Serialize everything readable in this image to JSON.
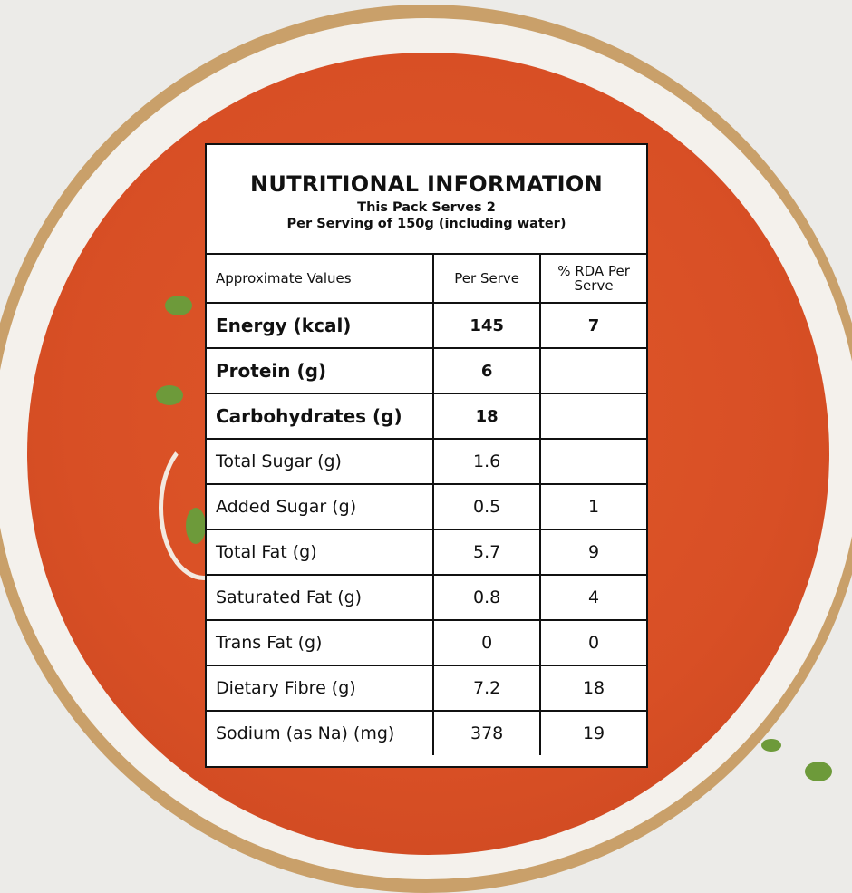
{
  "label": {
    "title": "NUTRITIONAL INFORMATION",
    "serves": "This Pack Serves 2",
    "serving": "Per Serving of 150g (including water)",
    "columns": [
      "Approximate Values",
      "Per Serve",
      "% RDA Per Serve"
    ],
    "rows": [
      {
        "name": "Energy (kcal)",
        "per_serve": "145",
        "rda": "7",
        "bold": true
      },
      {
        "name": "Protein (g)",
        "per_serve": "6",
        "rda": "",
        "bold": true
      },
      {
        "name": "Carbohydrates (g)",
        "per_serve": "18",
        "rda": "",
        "bold": true
      },
      {
        "name": "Total Sugar (g)",
        "per_serve": "1.6",
        "rda": ""
      },
      {
        "name": "Added Sugar (g)",
        "per_serve": "0.5",
        "rda": "1"
      },
      {
        "name": "Total Fat (g)",
        "per_serve": "5.7",
        "rda": "9"
      },
      {
        "name": "Saturated Fat (g)",
        "per_serve": "0.8",
        "rda": "4"
      },
      {
        "name": "Trans Fat (g)",
        "per_serve": "0",
        "rda": "0"
      },
      {
        "name": "Dietary Fibre (g)",
        "per_serve": "7.2",
        "rda": "18"
      },
      {
        "name": "Sodium (as Na) (mg)",
        "per_serve": "378",
        "rda": "19"
      }
    ]
  },
  "colors": {
    "soup": "#d84f25",
    "rim": "#c9a06a",
    "background": "#ecebe8"
  }
}
